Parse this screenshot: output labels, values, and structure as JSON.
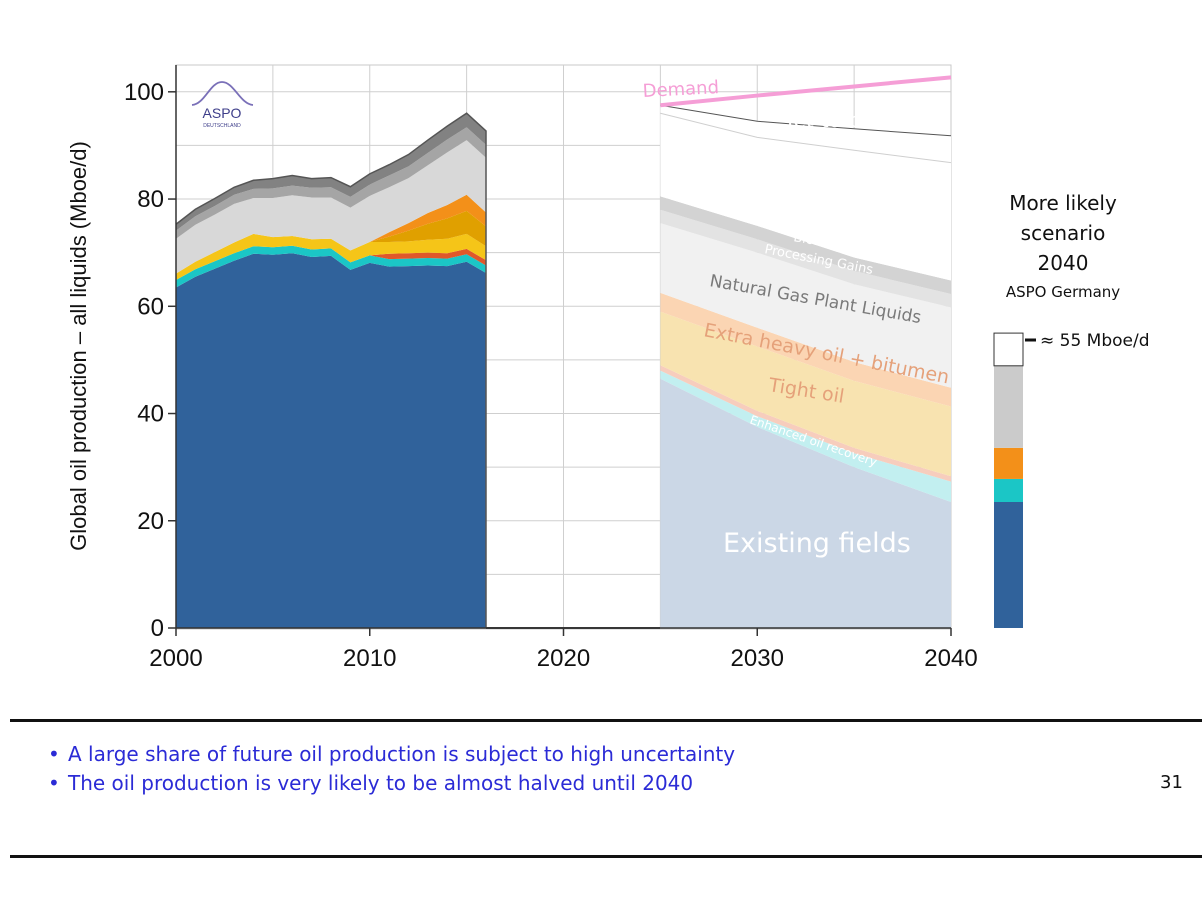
{
  "chart_data": {
    "type": "area",
    "ylabel": "Global oil production – all liquids  (Mboe/d)",
    "xlim": [
      2000,
      2040
    ],
    "ylim": [
      0,
      105
    ],
    "x_ticks": [
      "2000",
      "2010",
      "2020",
      "2030",
      "2040"
    ],
    "y_ticks": [
      "0",
      "20",
      "40",
      "60",
      "80",
      "100"
    ],
    "grid": true,
    "logo_text": "ASPO",
    "logo_subtext": "DEUTSCHLAND",
    "history": {
      "x": [
        2000,
        2001,
        2002,
        2003,
        2004,
        2005,
        2006,
        2007,
        2008,
        2009,
        2010,
        2011,
        2012,
        2013,
        2014,
        2015,
        2016
      ],
      "series": [
        {
          "key": "existing",
          "color": "#30629b",
          "values": [
            63.5,
            65.5,
            67,
            68.5,
            69.8,
            69.6,
            69.9,
            69.2,
            69.4,
            66.8,
            68.1,
            67.4,
            67.5,
            67.6,
            67.5,
            68.3,
            66.2
          ]
        },
        {
          "key": "eor",
          "color": "#1bc6c6",
          "values": [
            1.4,
            1.4,
            1.4,
            1.4,
            1.4,
            1.4,
            1.4,
            1.4,
            1.4,
            1.4,
            1.4,
            1.4,
            1.4,
            1.4,
            1.4,
            1.4,
            1.4
          ]
        },
        {
          "key": "red",
          "color": "#e0582a",
          "values": [
            0,
            0,
            0,
            0,
            0,
            0,
            0,
            0,
            0,
            0,
            0,
            1.0,
            1.0,
            1.0,
            1.0,
            1.0,
            1.0
          ]
        },
        {
          "key": "yellow",
          "color": "#f5c518",
          "values": [
            1.2,
            1.4,
            1.7,
            2.0,
            2.3,
            1.9,
            1.8,
            1.9,
            1.8,
            2.2,
            2.5,
            2.2,
            2.2,
            2.4,
            2.7,
            2.8,
            2.6
          ]
        },
        {
          "key": "tight",
          "color": "#e0a000",
          "values": [
            0,
            0,
            0,
            0,
            0,
            0,
            0,
            0,
            0,
            0,
            0,
            1.0,
            2.0,
            3.0,
            3.8,
            4.3,
            3.7
          ]
        },
        {
          "key": "orange",
          "color": "#f39019",
          "values": [
            0,
            0,
            0,
            0,
            0,
            0,
            0,
            0,
            0,
            0,
            0,
            0.8,
            1.4,
            2.0,
            2.5,
            3.0,
            2.6
          ]
        },
        {
          "key": "ngl",
          "color": "#d8d8d8",
          "values": [
            6.5,
            6.9,
            7.0,
            7.2,
            6.7,
            7.3,
            7.6,
            7.8,
            7.7,
            8.0,
            8.6,
            8.4,
            8.4,
            8.9,
            9.8,
            10.2,
            10.2
          ]
        },
        {
          "key": "gains",
          "color": "#a5a5a5",
          "values": [
            1.5,
            1.6,
            1.6,
            1.7,
            1.7,
            1.8,
            1.8,
            1.8,
            1.9,
            2.0,
            2.1,
            2.2,
            2.2,
            2.3,
            2.4,
            2.4,
            2.4
          ]
        },
        {
          "key": "bio",
          "color": "#828282",
          "values": [
            1.2,
            1.3,
            1.4,
            1.4,
            1.6,
            1.8,
            1.9,
            1.7,
            1.8,
            1.9,
            2.0,
            2.0,
            2.2,
            2.4,
            2.5,
            2.6,
            2.6
          ]
        }
      ]
    },
    "projection": {
      "x": [
        2025,
        2030,
        2035,
        2040
      ],
      "series": [
        {
          "key": "existing",
          "label": "Existing fields",
          "color": "#cbd7e6",
          "values": [
            46.5,
            37.5,
            30,
            23.5
          ]
        },
        {
          "key": "eor",
          "label": "Enhanced oil recovery",
          "color": "#c2eff0",
          "values": [
            1.5,
            2.0,
            2.6,
            3.8
          ]
        },
        {
          "key": "red",
          "label": "",
          "color": "#f7cdbd",
          "values": [
            1.0,
            1.0,
            1.0,
            1.0
          ]
        },
        {
          "key": "tight",
          "label": "Tight oil",
          "color": "#f8e3b0",
          "values": [
            10,
            12,
            12.5,
            13
          ]
        },
        {
          "key": "xheavy",
          "label": "Extra heavy oil + bitumen",
          "color": "#fbd5b3",
          "values": [
            3.5,
            3.5,
            3.5,
            3.5
          ]
        },
        {
          "key": "ngl",
          "label": "Natural Gas Plant Liquids",
          "color": "#f1f1f1",
          "values": [
            13,
            14,
            14.5,
            15
          ]
        },
        {
          "key": "gains",
          "label": "Processing Gains",
          "color": "#e3e3e3",
          "values": [
            2.5,
            2.5,
            2.5,
            2.5
          ]
        },
        {
          "key": "bio",
          "label": "Biofuels",
          "color": "#d3d3d3",
          "values": [
            2.5,
            2.5,
            2.5,
            2.5
          ]
        },
        {
          "key": "ytd",
          "label": "Yet-to-be-developed",
          "color": "#ffffff",
          "values": [
            15.5,
            16.5,
            20,
            22
          ]
        },
        {
          "key": "ytf",
          "label": "Yet-to-be-found",
          "color": "#ffffff",
          "values": [
            1.5,
            3,
            4,
            5
          ]
        }
      ],
      "demand": {
        "label": "Demand",
        "color": "#f59ed6",
        "values": [
          97.5,
          99.3,
          101,
          102.7
        ]
      }
    },
    "scenario_box": {
      "title_lines": [
        "More likely",
        "scenario",
        "2040"
      ],
      "subtitle": "ASPO Germany",
      "marker_label": "≈ 55 Mboe/d",
      "stack": [
        {
          "color": "#30629b",
          "value": 23.5
        },
        {
          "color": "#1bc6c6",
          "value": 4.3
        },
        {
          "color": "#f39019",
          "value": 5.8
        },
        {
          "color": "#cbcbcb",
          "value": 15.3
        },
        {
          "color": "#ffffff",
          "value": 6.1
        }
      ]
    }
  },
  "bullets": [
    "A large share of future oil production is subject to high uncertainty",
    "The oil production is very likely to be almost halved until 2040"
  ],
  "page_number": "31"
}
